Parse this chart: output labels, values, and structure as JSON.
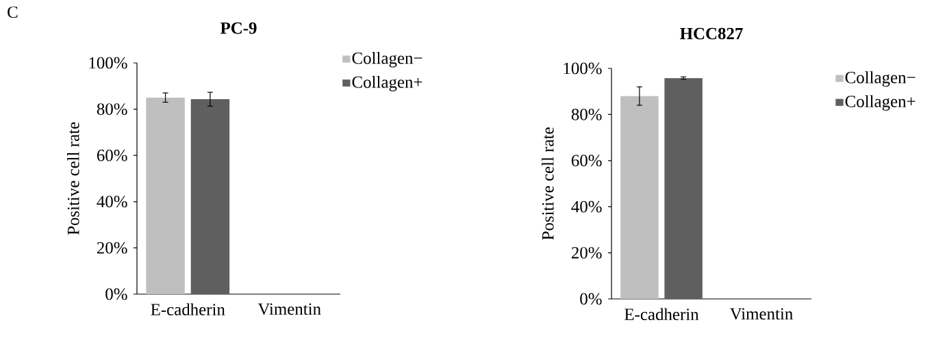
{
  "chart_data": [
    {
      "type": "bar",
      "title": "PC-9",
      "ylabel": "Positive cell rate",
      "annotations": [
        "C"
      ],
      "categories": [
        "E-cadherin",
        "Vimentin"
      ],
      "series": [
        {
          "name": "Collagen−",
          "color": "#bfbfbf",
          "values": [
            85,
            0
          ],
          "errors": [
            2,
            null
          ]
        },
        {
          "name": "Collagen+",
          "color": "#5f5f5f",
          "values": [
            84.3,
            0
          ],
          "errors": [
            3,
            null
          ]
        }
      ],
      "ylim": [
        0,
        100
      ],
      "yticks": [
        {
          "value": 0,
          "label": "0%"
        },
        {
          "value": 20,
          "label": "20%"
        },
        {
          "value": 40,
          "label": "40%"
        },
        {
          "value": 60,
          "label": "60%"
        },
        {
          "value": 80,
          "label": "80%"
        },
        {
          "value": 100,
          "label": "100%"
        }
      ],
      "legend": "top right",
      "grid": false
    },
    {
      "type": "bar",
      "title": "HCC827",
      "ylabel": "Positive cell rate",
      "categories": [
        "E-cadherin",
        "Vimentin"
      ],
      "series": [
        {
          "name": "Collagen−",
          "color": "#bfbfbf",
          "values": [
            88,
            0
          ],
          "errors": [
            4,
            null
          ]
        },
        {
          "name": "Collagen+",
          "color": "#5f5f5f",
          "values": [
            95.8,
            0
          ],
          "errors": [
            0.5,
            null
          ]
        }
      ],
      "ylim": [
        0,
        100
      ],
      "yticks": [
        {
          "value": 0,
          "label": "0%"
        },
        {
          "value": 20,
          "label": "20%"
        },
        {
          "value": 40,
          "label": "40%"
        },
        {
          "value": 60,
          "label": "60%"
        },
        {
          "value": 80,
          "label": "80%"
        },
        {
          "value": 100,
          "label": "100%"
        }
      ],
      "legend": "top right",
      "grid": false
    }
  ]
}
